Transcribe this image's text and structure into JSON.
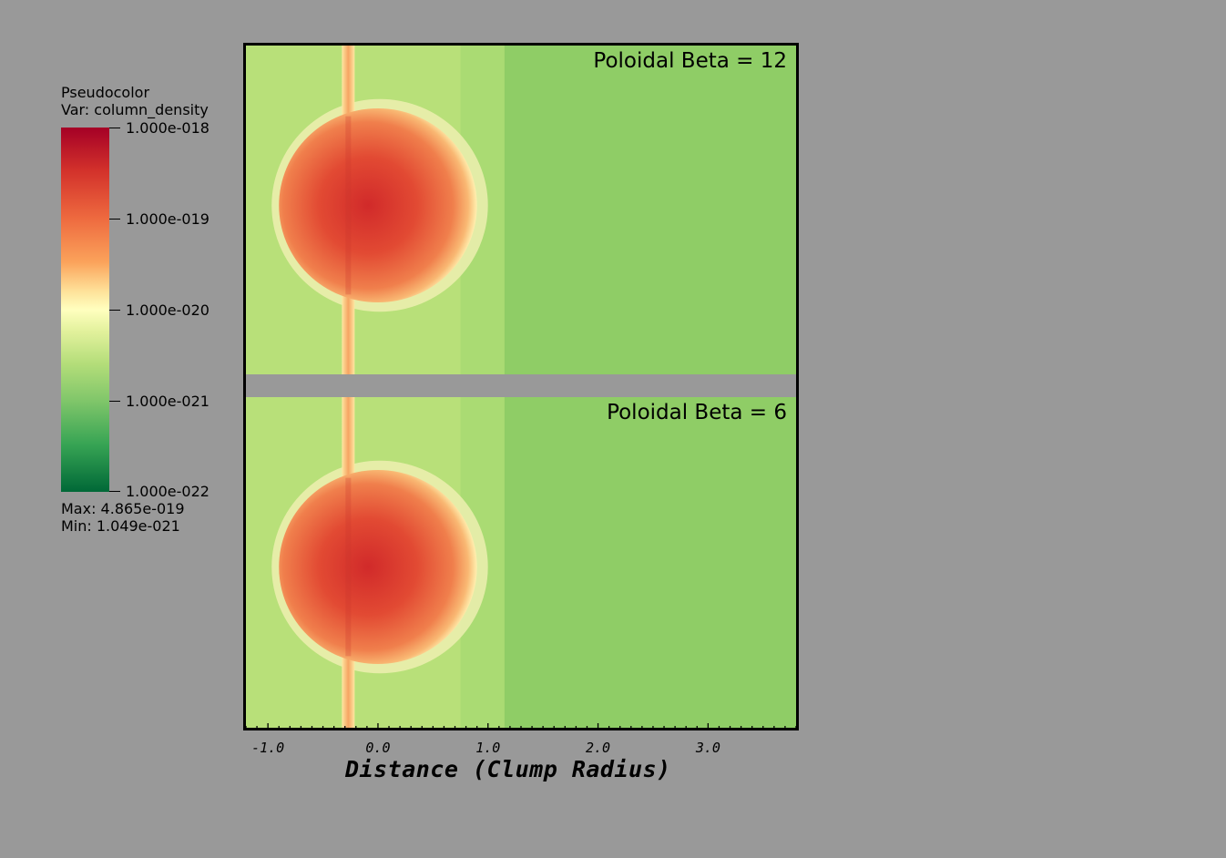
{
  "legend": {
    "title": "Pseudocolor",
    "var_label": "Var: column_density",
    "ticks": [
      "1.000e-018",
      "1.000e-019",
      "1.000e-020",
      "1.000e-021",
      "1.000e-022"
    ],
    "max_label": "Max:  4.865e-019",
    "min_label": "Min:  1.049e-021"
  },
  "colors": {
    "background": "#999999",
    "ambient_left": "#b8e079",
    "ambient_mid": "#aadb73",
    "ambient_right": "#8fcd66",
    "clump_core": "#d4322b",
    "clump_edge": "#fff2b0"
  },
  "chart_data": {
    "type": "heatmap",
    "xlabel": "Distance (Clump Radius)",
    "xlim": [
      -1.2,
      3.8
    ],
    "x_ticks": [
      -1.0,
      0.0,
      1.0,
      2.0,
      3.0
    ],
    "x_tick_labels": [
      "-1.0",
      "0.0",
      "1.0",
      "2.0",
      "3.0"
    ],
    "colorbar": {
      "variable": "column_density",
      "scale": "log",
      "range": [
        1e-22,
        1e-18
      ],
      "max": 4.865e-19,
      "min": 1.049e-21
    },
    "panels": [
      {
        "label": "Poloidal Beta = 12",
        "beta": 12,
        "clump_center_x": 0.0,
        "clump_radius": 0.9
      },
      {
        "label": "Poloidal Beta =  6",
        "beta": 6,
        "clump_center_x": 0.0,
        "clump_radius": 0.9
      }
    ]
  }
}
